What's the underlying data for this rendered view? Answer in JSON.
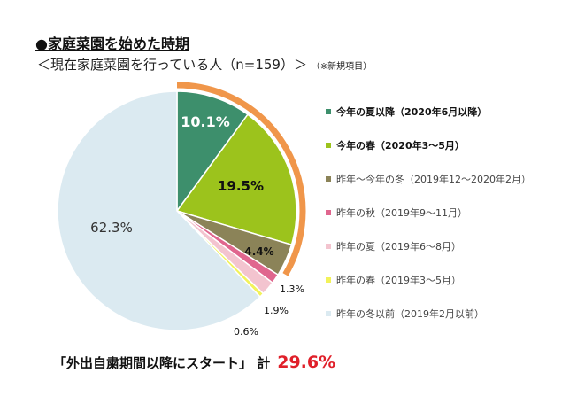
{
  "chart_data": {
    "type": "pie",
    "title": "●家庭菜園を始めた時期",
    "subtitle": "＜現在家庭菜園を行っている人（n=159）＞",
    "note": "（※新規項目）",
    "slices": [
      {
        "label": "今年の夏以降（2020年6月以降）",
        "value": 10.1,
        "data_label": "10.1%",
        "color": "#3d8f6c",
        "bold": true
      },
      {
        "label": "今年の春（2020年3～5月）",
        "value": 19.5,
        "data_label": "19.5%",
        "color": "#9cc31c",
        "bold": true
      },
      {
        "label": "昨年～今年の冬（2019年12～2020年2月）",
        "value": 4.4,
        "data_label": "4.4%",
        "color": "#8b8358",
        "bold": false
      },
      {
        "label": "昨年の秋（2019年9～11月）",
        "value": 1.3,
        "data_label": "1.3%",
        "color": "#e0668e",
        "bold": false
      },
      {
        "label": "昨年の夏（2019年6～8月）",
        "value": 1.9,
        "data_label": "1.9%",
        "color": "#f3c4cf",
        "bold": false
      },
      {
        "label": "昨年の春（2019年3～5月）",
        "value": 0.6,
        "data_label": "0.6%",
        "color": "#f2f25a",
        "bold": false
      },
      {
        "label": "昨年の冬以前（2019年2月以前）",
        "value": 62.3,
        "data_label": "62.3%",
        "color": "#dbeaf1",
        "bold": false
      }
    ],
    "highlight": {
      "label": "「外出自粛期間以降にスタート」 計",
      "value": 29.6,
      "value_label": "29.6%",
      "color": "#f0964a"
    },
    "legend_position": "right"
  }
}
